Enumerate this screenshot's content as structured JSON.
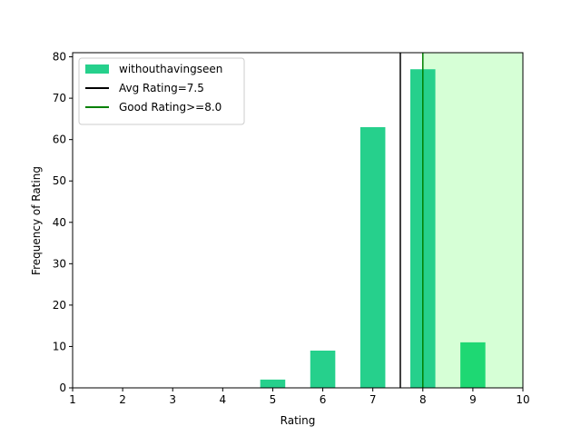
{
  "chart_data": {
    "type": "bar",
    "title": "",
    "xlabel": "Rating",
    "ylabel": "Frequency of Rating",
    "xlim": [
      1,
      10
    ],
    "ylim": [
      0,
      81
    ],
    "xticks": [
      "1",
      "2",
      "3",
      "4",
      "5",
      "6",
      "7",
      "8",
      "9",
      "10"
    ],
    "yticks": [
      "0",
      "10",
      "20",
      "30",
      "40",
      "50",
      "60",
      "70",
      "80"
    ],
    "grid": false,
    "legend_position": "top-left",
    "series": [
      {
        "name": "withouthavingseen",
        "color": "#26d08c",
        "highlight_color": "#1ed873",
        "x": [
          5,
          6,
          7,
          8,
          9
        ],
        "values": [
          2,
          9,
          63,
          77,
          11
        ]
      }
    ],
    "reference_lines": [
      {
        "label": "Avg Rating=7.5",
        "x": 7.55,
        "color": "#000000"
      },
      {
        "label": "Good Rating>=8.0",
        "x": 8.0,
        "color": "#008000"
      }
    ],
    "shaded_region": {
      "x_from": 8.0,
      "x_to": 10,
      "color": "#d6ffd6"
    }
  }
}
